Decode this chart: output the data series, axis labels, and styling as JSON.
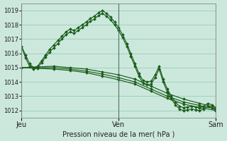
{
  "title": "Pression niveau de la mer( hPa )",
  "xlabel_ticks": [
    0,
    24,
    48
  ],
  "xlabel_labels": [
    "Jeu",
    "Ven",
    "Sam"
  ],
  "ylim": [
    1011.5,
    1019.5
  ],
  "yticks": [
    1012,
    1013,
    1014,
    1015,
    1016,
    1017,
    1018,
    1019
  ],
  "background_color": "#cce8dc",
  "grid_color": "#99ccbb",
  "line_color": "#1a5c1a",
  "vline_color": "#4a7a5a",
  "lines": [
    {
      "x": [
        0,
        1,
        2,
        3,
        4,
        5,
        6,
        7,
        8,
        9,
        10,
        11,
        12,
        13,
        14,
        15,
        16,
        17,
        18,
        19,
        20,
        21,
        22,
        23,
        24,
        25,
        26,
        27,
        28,
        29,
        30,
        31,
        32,
        33,
        34,
        35,
        36,
        37,
        38,
        39,
        40,
        41,
        42,
        43,
        44,
        45,
        46,
        47,
        48
      ],
      "y": [
        1016.5,
        1015.9,
        1015.3,
        1015.0,
        1015.1,
        1015.5,
        1015.9,
        1016.3,
        1016.6,
        1016.9,
        1017.2,
        1017.5,
        1017.7,
        1017.6,
        1017.8,
        1018.0,
        1018.2,
        1018.45,
        1018.6,
        1018.85,
        1019.0,
        1018.8,
        1018.55,
        1018.2,
        1017.8,
        1017.3,
        1016.7,
        1016.0,
        1015.3,
        1014.6,
        1014.1,
        1014.0,
        1014.05,
        1014.5,
        1015.1,
        1014.2,
        1013.5,
        1013.0,
        1012.6,
        1012.3,
        1012.2,
        1012.25,
        1012.3,
        1012.25,
        1012.2,
        1012.3,
        1012.5,
        1012.4,
        1012.2
      ]
    },
    {
      "x": [
        0,
        1,
        2,
        3,
        4,
        5,
        6,
        7,
        8,
        9,
        10,
        11,
        12,
        13,
        14,
        15,
        16,
        17,
        18,
        19,
        20,
        21,
        22,
        23,
        24,
        25,
        26,
        27,
        28,
        29,
        30,
        31,
        32,
        33,
        34,
        35,
        36,
        37,
        38,
        39,
        40,
        41,
        42,
        43,
        44,
        45,
        46,
        47,
        48
      ],
      "y": [
        1016.5,
        1015.7,
        1015.1,
        1014.9,
        1015.0,
        1015.35,
        1015.75,
        1016.1,
        1016.4,
        1016.7,
        1017.0,
        1017.3,
        1017.5,
        1017.4,
        1017.6,
        1017.8,
        1018.0,
        1018.25,
        1018.4,
        1018.65,
        1018.8,
        1018.6,
        1018.35,
        1018.0,
        1017.6,
        1017.1,
        1016.5,
        1015.8,
        1015.1,
        1014.4,
        1013.9,
        1013.8,
        1013.85,
        1014.3,
        1014.9,
        1014.0,
        1013.3,
        1012.8,
        1012.4,
        1012.1,
        1012.0,
        1012.05,
        1012.1,
        1012.05,
        1012.0,
        1012.1,
        1012.3,
        1012.2,
        1012.0
      ]
    },
    {
      "x": [
        0,
        4,
        8,
        12,
        16,
        20,
        24,
        28,
        32,
        36,
        40,
        44,
        48
      ],
      "y": [
        1015.0,
        1015.05,
        1015.1,
        1015.0,
        1014.9,
        1014.7,
        1014.5,
        1014.2,
        1013.7,
        1013.2,
        1012.8,
        1012.5,
        1012.2
      ]
    },
    {
      "x": [
        0,
        4,
        8,
        12,
        16,
        20,
        24,
        28,
        32,
        36,
        40,
        44,
        48
      ],
      "y": [
        1015.0,
        1015.0,
        1015.0,
        1014.9,
        1014.75,
        1014.55,
        1014.3,
        1014.0,
        1013.5,
        1013.0,
        1012.6,
        1012.35,
        1012.1
      ]
    },
    {
      "x": [
        0,
        4,
        8,
        12,
        16,
        20,
        24,
        28,
        32,
        36,
        40,
        44,
        48
      ],
      "y": [
        1015.0,
        1014.95,
        1014.9,
        1014.8,
        1014.65,
        1014.4,
        1014.15,
        1013.85,
        1013.35,
        1012.85,
        1012.45,
        1012.2,
        1012.0
      ]
    }
  ],
  "vlines_x": [
    0,
    24,
    48
  ],
  "marker": "D",
  "markersize": 2.0,
  "linewidth": 0.85
}
